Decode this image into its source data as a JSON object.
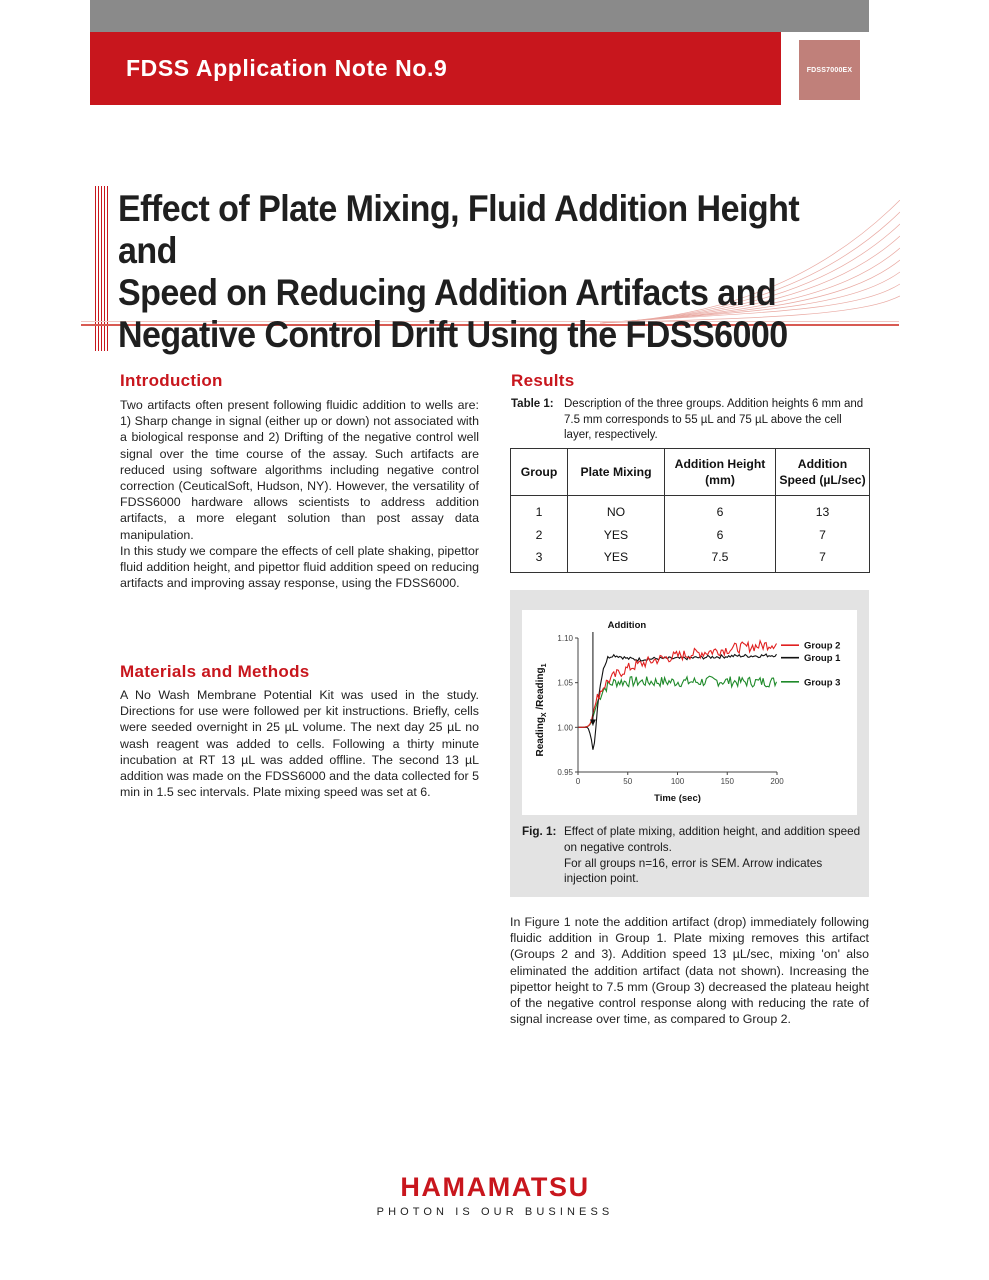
{
  "header": {
    "title": "FDSS Application Note No.9",
    "product_badge": "FDSS7000EX"
  },
  "title_lines": [
    "Effect of Plate Mixing, Fluid Addition Height and",
    "Speed on Reducing Addition Artifacts and",
    "Negative Control Drift Using the FDSS6000"
  ],
  "introduction": {
    "heading": "Introduction",
    "paragraphs": [
      "Two artifacts often present following fluidic addition to wells are: 1) Sharp change in signal (either up or down) not associated with a biological response and 2) Drifting of the negative control well signal over the time course of the assay. Such artifacts are reduced using software algorithms including negative control correction (CeuticalSoft, Hudson, NY).  However, the versatility of FDSS6000 hardware allows scientists to address addition artifacts, a more elegant solution than post assay data manipulation.",
      "In this study we compare the effects of cell plate shaking, pipettor fluid addition height, and pipettor fluid addition speed on reducing artifacts and improving assay response, using the FDSS6000."
    ]
  },
  "methods": {
    "heading": "Materials and Methods",
    "paragraph": "A No Wash Membrane Potential Kit was used in the study. Directions for use were followed per kit instructions. Briefly, cells were seeded overnight in 25 µL volume.  The next day 25 µL no wash reagent was added to cells. Following a thirty minute incubation at RT 13 µL was added offline. The second 13 µL addition was made on the FDSS6000 and the data collected for 5 min in 1.5 sec intervals.  Plate mixing speed was set at 6."
  },
  "results": {
    "heading": "Results",
    "table_label": "Table 1:",
    "table_caption": "Description of the three groups. Addition heights 6 mm and 7.5 mm corresponds to 55 µL and 75 µL above the cell layer, respectively.",
    "table": {
      "headers": [
        "Group",
        "Plate Mixing",
        "Addition Height (mm)",
        "Addition Speed (µL/sec)"
      ],
      "rows": [
        [
          "1",
          "NO",
          "6",
          "13"
        ],
        [
          "2",
          "YES",
          "6",
          "7"
        ],
        [
          "3",
          "YES",
          "7.5",
          "7"
        ]
      ]
    },
    "figure_label": "Fig. 1:",
    "figure_caption_1": "Effect of plate mixing, addition height, and addition speed on negative controls.",
    "figure_caption_2": "For all groups n=16, error is SEM. Arrow indicates injection point.",
    "discussion": "In Figure 1 note the addition artifact (drop) immediately following fluidic addition in Group 1. Plate mixing removes this artifact (Groups 2 and 3). Addition speed 13 µL/sec, mixing 'on' also eliminated the addition artifact (data not shown). Increasing the pipettor height to 7.5 mm (Group 3) decreased the plateau height of the negative control response along with reducing the rate of signal increase over time, as compared to Group 2."
  },
  "chart_data": {
    "type": "line",
    "title": "",
    "annotation": "Addition",
    "xlabel": "Time (sec)",
    "ylabel_main": "Reading",
    "ylabel_sub_x": "X",
    "ylabel_sep": " /Reading",
    "ylabel_sub_1": "1",
    "xlim": [
      0,
      200
    ],
    "ylim": [
      0.95,
      1.1
    ],
    "xticks": [
      0,
      50,
      100,
      150,
      200
    ],
    "yticks": [
      0.95,
      1.0,
      1.05,
      1.1
    ],
    "ytick_labels": [
      "0.95",
      "1.00",
      "1.05",
      "1.10"
    ],
    "legend_position": "right",
    "addition_time": 15,
    "series": [
      {
        "name": "Group 2",
        "color": "#e02020",
        "x": [
          0,
          5,
          10,
          13,
          16,
          20,
          25,
          30,
          40,
          50,
          60,
          80,
          100,
          120,
          140,
          160,
          180,
          200
        ],
        "y": [
          1.0,
          1.0,
          1.001,
          1.005,
          1.02,
          1.035,
          1.045,
          1.052,
          1.06,
          1.066,
          1.07,
          1.076,
          1.08,
          1.083,
          1.086,
          1.089,
          1.091,
          1.094
        ]
      },
      {
        "name": "Group 1",
        "color": "#111111",
        "x": [
          0,
          5,
          10,
          13,
          15,
          17,
          20,
          25,
          30,
          35,
          40,
          50,
          60,
          80,
          100,
          120,
          140,
          160,
          180,
          200
        ],
        "y": [
          1.0,
          1.0,
          1.0,
          0.99,
          0.975,
          0.985,
          1.03,
          1.065,
          1.078,
          1.081,
          1.08,
          1.077,
          1.076,
          1.077,
          1.077,
          1.078,
          1.079,
          1.08,
          1.08,
          1.081
        ]
      },
      {
        "name": "Group 3",
        "color": "#1f8a2a",
        "x": [
          0,
          5,
          10,
          13,
          16,
          20,
          25,
          30,
          35,
          40,
          50,
          60,
          80,
          100,
          120,
          140,
          160,
          180,
          200
        ],
        "y": [
          1.0,
          1.0,
          1.001,
          1.004,
          1.015,
          1.03,
          1.042,
          1.047,
          1.05,
          1.051,
          1.051,
          1.051,
          1.051,
          1.051,
          1.051,
          1.052,
          1.051,
          1.051,
          1.051
        ]
      }
    ]
  },
  "footer": {
    "logo_name": "HAMAMATSU",
    "tagline": "PHOTON IS OUR BUSINESS"
  }
}
